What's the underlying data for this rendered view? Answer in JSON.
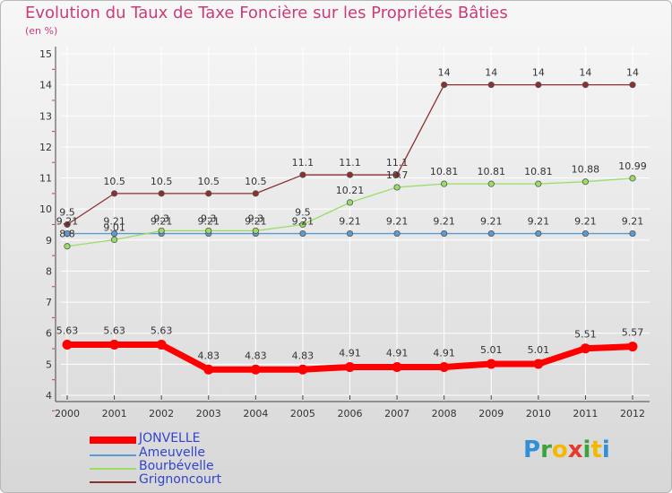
{
  "chart_data": {
    "type": "line",
    "title": "Evolution du Taux de Taxe Foncière sur les Propriétés Bâties",
    "subtitle": "(en %)",
    "xlabel": "",
    "ylabel": "",
    "categories": [
      "2000",
      "2001",
      "2002",
      "2003",
      "2004",
      "2005",
      "2006",
      "2007",
      "2008",
      "2009",
      "2010",
      "2011",
      "2012"
    ],
    "ylim": [
      4,
      15
    ],
    "yticks": [
      "4",
      "5",
      "6",
      "7",
      "8",
      "9",
      "10",
      "11",
      "12",
      "13",
      "14",
      "15"
    ],
    "series": [
      {
        "name": "JONVELLE",
        "color": "#ff0000",
        "values": [
          5.63,
          5.63,
          5.63,
          4.83,
          4.83,
          4.83,
          4.91,
          4.91,
          4.91,
          5.01,
          5.01,
          5.51,
          5.57
        ],
        "labels": [
          "5.63",
          "5.63",
          "5.63",
          "4.83",
          "4.83",
          "4.83",
          "4.91",
          "4.91",
          "4.91",
          "5.01",
          "5.01",
          "5.51",
          "5.57"
        ]
      },
      {
        "name": "Ameuvelle",
        "color": "#5b9bd0",
        "values": [
          9.21,
          9.21,
          9.21,
          9.21,
          9.21,
          9.21,
          9.21,
          9.21,
          9.21,
          9.21,
          9.21,
          9.21,
          9.21
        ],
        "labels": [
          "9.21",
          "9.21",
          "9.21",
          "9.21",
          "9.21",
          "9.21",
          "9.21",
          "9.21",
          "9.21",
          "9.21",
          "9.21",
          "9.21",
          "9.21"
        ]
      },
      {
        "name": "Bourbévelle",
        "color": "#99dd66",
        "values": [
          8.8,
          9.01,
          9.3,
          9.3,
          9.3,
          9.5,
          10.21,
          10.7,
          10.81,
          10.81,
          10.81,
          10.88,
          10.99
        ],
        "labels": [
          "8.8",
          "9.01",
          "9.3",
          "9.3",
          "9.3",
          "9.5",
          "10.21",
          "10.7",
          "10.81",
          "10.81",
          "10.81",
          "10.88",
          "10.99"
        ]
      },
      {
        "name": "Grignoncourt",
        "color": "#8b3030",
        "values": [
          9.5,
          10.5,
          10.5,
          10.5,
          10.5,
          11.1,
          11.1,
          11.1,
          14,
          14,
          14,
          14,
          14
        ],
        "labels": [
          "9.5",
          "10.5",
          "10.5",
          "10.5",
          "10.5",
          "11.1",
          "11.1",
          "11.1",
          "14",
          "14",
          "14",
          "14",
          "14"
        ]
      }
    ],
    "legend": "bottom-left"
  },
  "brand": {
    "letters": [
      "P",
      "r",
      "o",
      "x",
      "i",
      "t",
      "i"
    ]
  }
}
